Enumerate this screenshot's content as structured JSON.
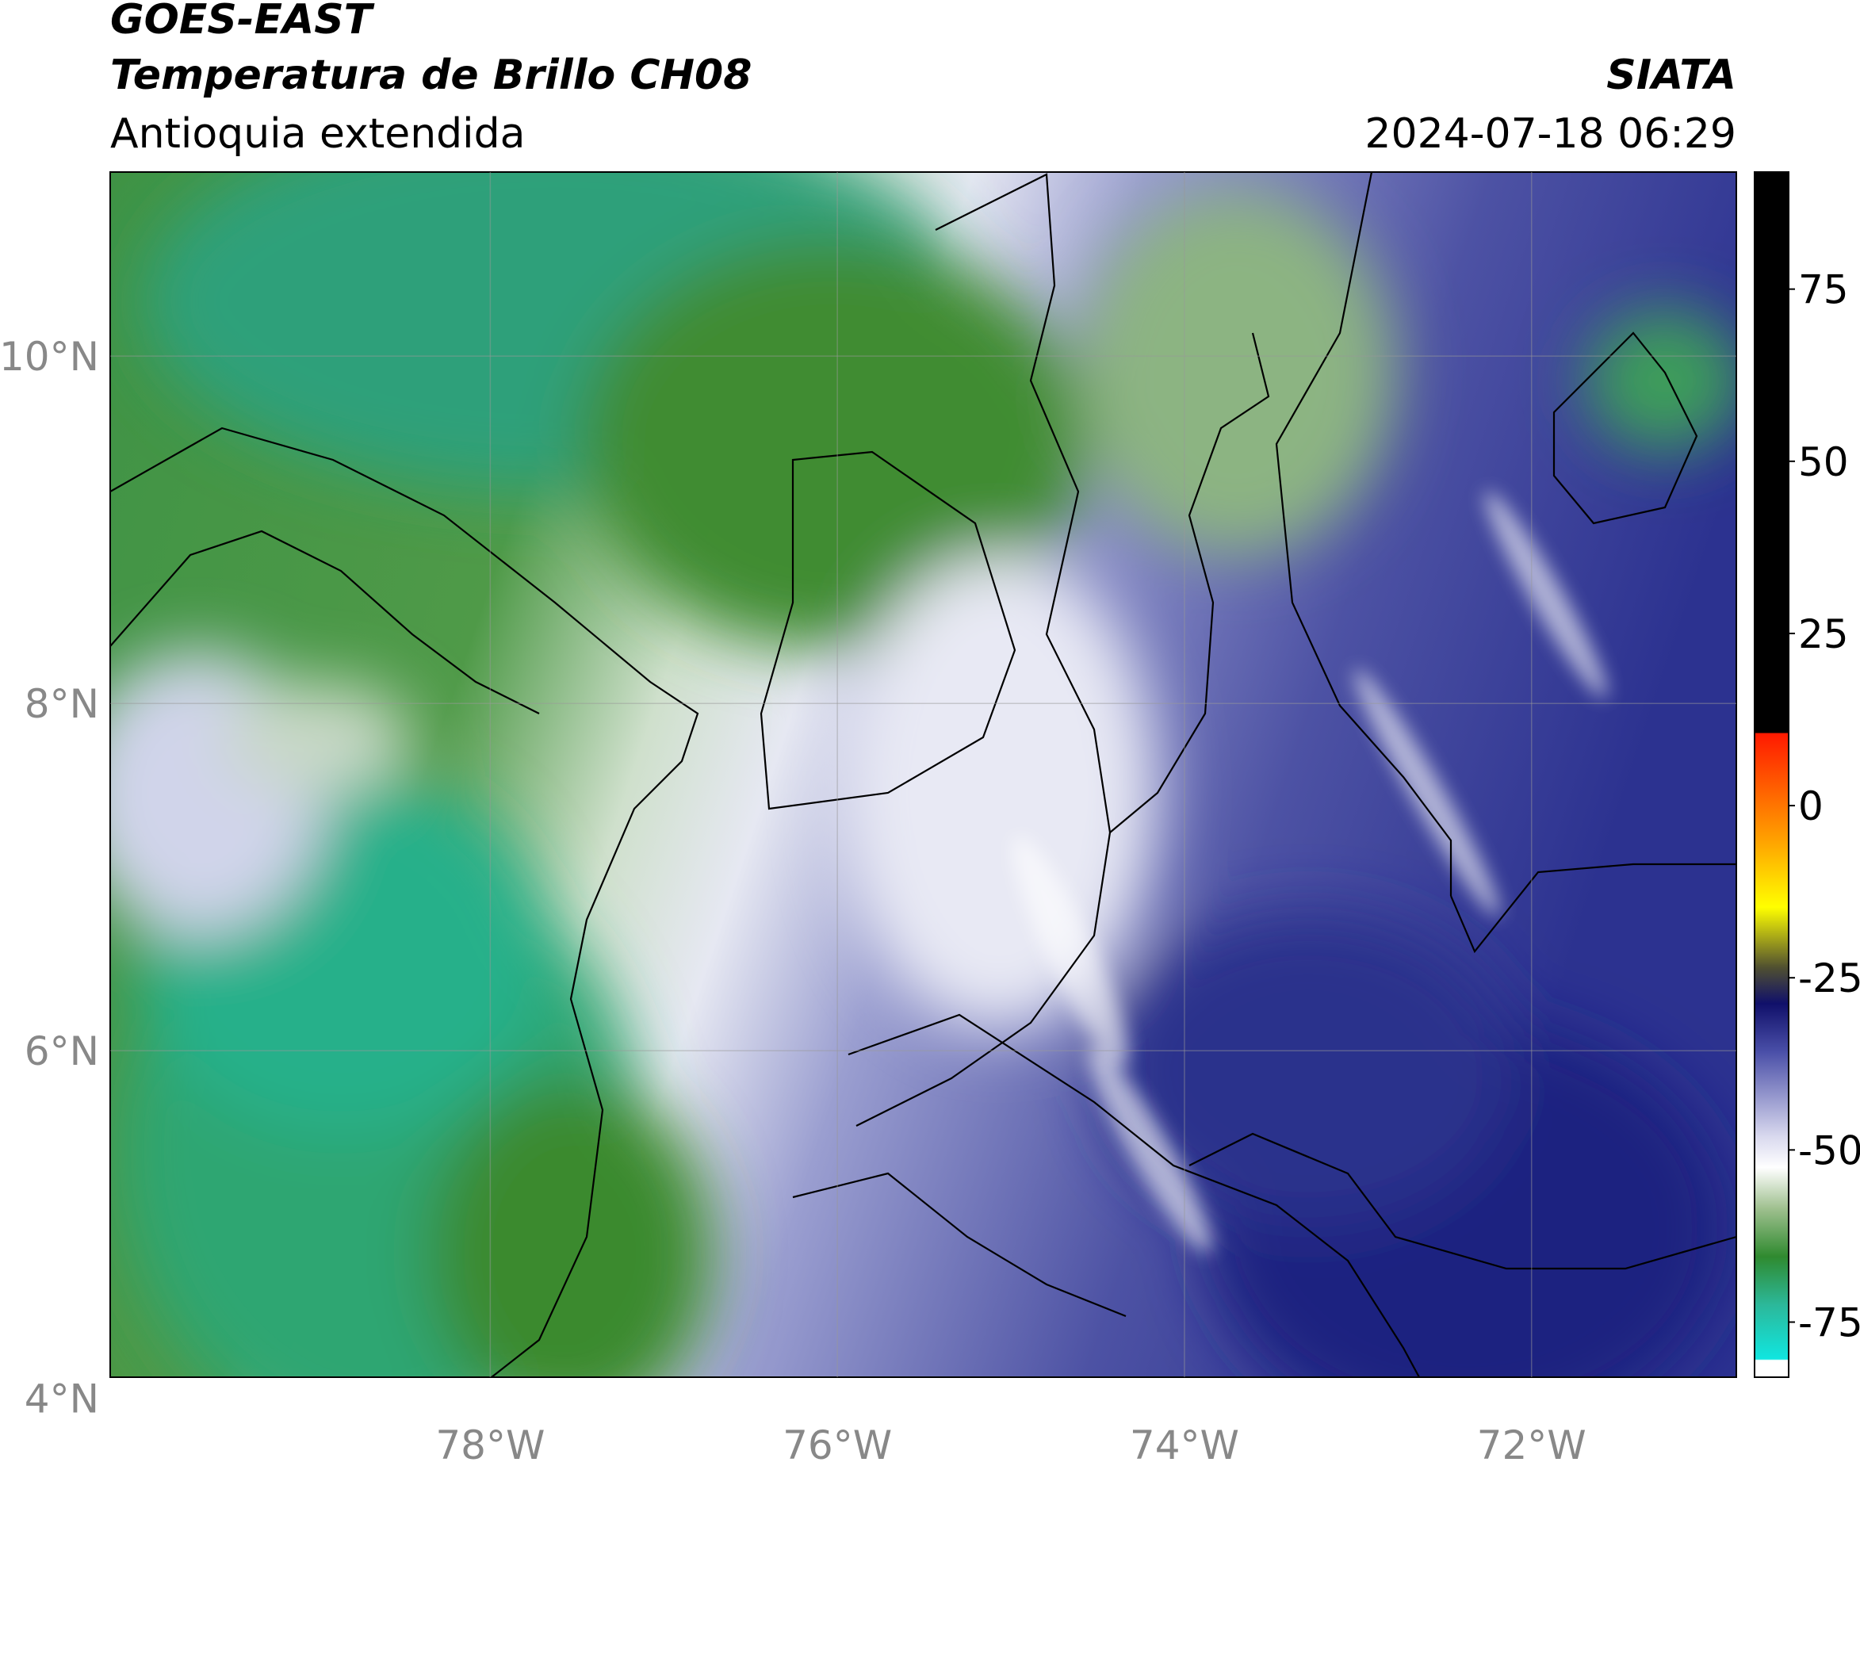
{
  "header": {
    "title_line1": "GOES-EAST",
    "title_line2": "Temperatura de Brillo CH08",
    "subtitle": "Antioquia extendida",
    "source": "SIATA",
    "datetime": "2024-07-18 06:29"
  },
  "map": {
    "lonlim": [
      -80.19,
      -70.82
    ],
    "latlim": [
      4.12,
      11.06
    ],
    "lon_ticks": [
      {
        "value": -78,
        "label": "78°W"
      },
      {
        "value": -76,
        "label": "76°W"
      },
      {
        "value": -74,
        "label": "74°W"
      },
      {
        "value": -72,
        "label": "72°W"
      }
    ],
    "lat_ticks": [
      {
        "value": 10,
        "label": "10°N"
      },
      {
        "value": 8,
        "label": "8°N"
      },
      {
        "value": 6,
        "label": "6°N"
      },
      {
        "value": 4,
        "label": "4°N"
      }
    ]
  },
  "colorbar": {
    "lim": [
      -83,
      92
    ],
    "ticks": [
      75,
      50,
      25,
      0,
      -25,
      -50,
      -75
    ]
  }
}
